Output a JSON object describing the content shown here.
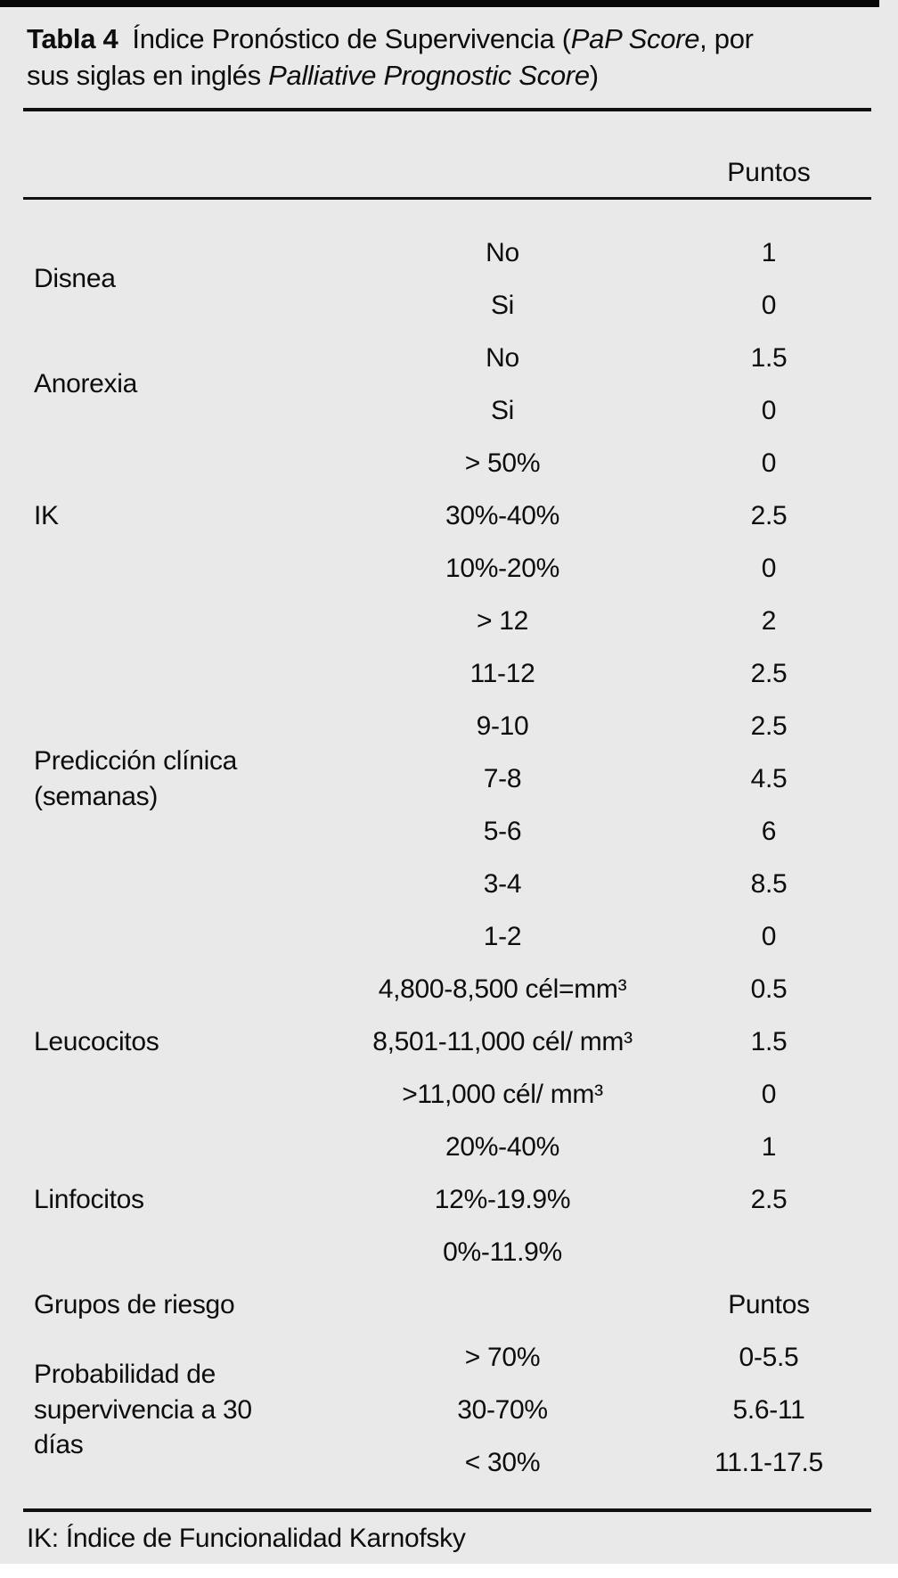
{
  "colors": {
    "panel_background": "#e9e9e9",
    "text": "#0d0d0d",
    "rule": "#111111",
    "top_bar": "#060606"
  },
  "table": {
    "caption": {
      "segments": [
        {
          "text": "Tabla 4",
          "style": "bold"
        },
        {
          "text": "Índice Pronóstico de Supervivencia (",
          "style": "regular"
        },
        {
          "text": "PaP Score",
          "style": "italic"
        },
        {
          "text": ", por",
          "style": "regular"
        },
        {
          "text": "sus siglas en inglés ",
          "style": "regular"
        },
        {
          "text": "Palliative Prognostic Score",
          "style": "italic"
        },
        {
          "text": ")",
          "style": "regular"
        }
      ]
    },
    "points_header": "Puntos",
    "groups": [
      {
        "category": "Disnea",
        "rows": [
          {
            "value": "No",
            "points": "1"
          },
          {
            "value": "Si",
            "points": "0"
          }
        ]
      },
      {
        "category": "Anorexia",
        "rows": [
          {
            "value": "No",
            "points": "1.5"
          },
          {
            "value": "Si",
            "points": "0"
          }
        ]
      },
      {
        "category": "IK",
        "rows": [
          {
            "value": "> 50%",
            "points": "0"
          },
          {
            "value": "30%-40%",
            "points": "2.5"
          },
          {
            "value": "10%-20%",
            "points": "0"
          }
        ]
      },
      {
        "category": "Predicción clínica (semanas)",
        "rows": [
          {
            "value": "> 12",
            "points": "2"
          },
          {
            "value": "11-12",
            "points": "2.5"
          },
          {
            "value": "9-10",
            "points": "2.5"
          },
          {
            "value": "7-8",
            "points": "4.5"
          },
          {
            "value": "5-6",
            "points": "6"
          },
          {
            "value": "3-4",
            "points": "8.5"
          },
          {
            "value": "1-2",
            "points": "0"
          }
        ]
      },
      {
        "category": "Leucocitos",
        "rows": [
          {
            "value": "4,800-8,500 cél=mm³",
            "points": "0.5"
          },
          {
            "value": "8,501-11,000 cél/ mm³",
            "points": "1.5"
          },
          {
            "value": ">11,000 cél/ mm³",
            "points": "0"
          }
        ]
      },
      {
        "category": "Linfocitos",
        "rows": [
          {
            "value": "20%-40%",
            "points": "1"
          },
          {
            "value": "12%-19.9%",
            "points": "2.5"
          },
          {
            "value": "0%-11.9%",
            "points": ""
          }
        ]
      },
      {
        "category": "Probabilidad de supervivencia a 30 días",
        "rows": [
          {
            "value": "> 70%",
            "points": "0-5.5"
          },
          {
            "value": "30-70%",
            "points": "5.6-11"
          },
          {
            "value": "< 30%",
            "points": "11.1-17.5"
          }
        ]
      }
    ],
    "risk_header": {
      "category": "Grupos de riesgo",
      "points_label": "Puntos"
    },
    "footnote": "IK: Índice de Funcionalidad Karnofsky"
  }
}
